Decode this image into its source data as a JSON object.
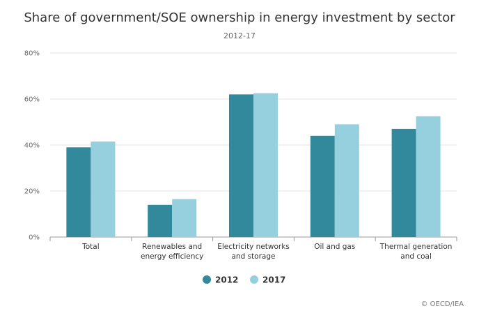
{
  "chart_data": {
    "type": "bar",
    "title": "Share of government/SOE ownership in energy investment by sector",
    "subtitle": "2012-17",
    "xlabel": "",
    "ylabel": "",
    "ylim": [
      0,
      80
    ],
    "yticks": [
      "0%",
      "20%",
      "40%",
      "60%",
      "80%"
    ],
    "ytick_values": [
      0,
      20,
      40,
      60,
      80
    ],
    "categories": [
      [
        "Total"
      ],
      [
        "Renewables and",
        "energy efficiency"
      ],
      [
        "Electricity networks",
        "and storage"
      ],
      [
        "Oil and gas"
      ],
      [
        "Thermal generation",
        "and coal"
      ]
    ],
    "series": [
      {
        "name": "2012",
        "color": "#31899B",
        "values": [
          39,
          14,
          62,
          44,
          47
        ]
      },
      {
        "name": "2017",
        "color": "#96CFDD",
        "values": [
          41.5,
          16.5,
          62.5,
          49,
          52.5
        ]
      }
    ],
    "legend": "bottom-center",
    "grid": true,
    "source": "© OECD/IEA"
  }
}
